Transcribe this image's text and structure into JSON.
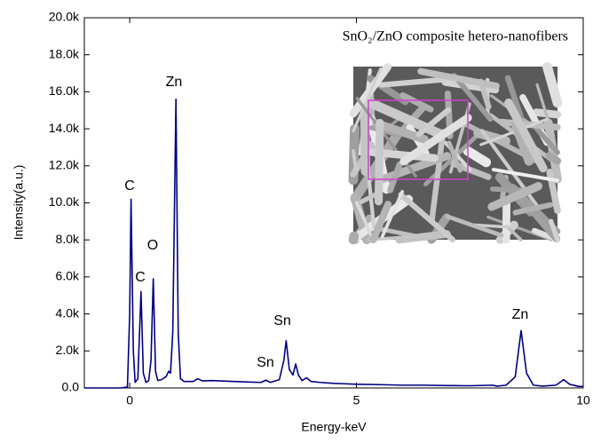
{
  "chart_data": {
    "type": "line",
    "annotation": "SnO₂/ZnO composite hetero-nanofibers",
    "x_label": "Energy-keV",
    "y_label": "Intensity(a.u.)",
    "peak_labels": [
      "C",
      "C",
      "O",
      "Zn",
      "Sn",
      "Sn",
      "Zn"
    ],
    "x": [
      -1,
      -0.2,
      -0.05,
      0,
      0.03,
      0.08,
      0.12,
      0.18,
      0.25,
      0.3,
      0.36,
      0.42,
      0.47,
      0.52,
      0.57,
      0.62,
      0.7,
      0.8,
      0.86,
      0.9,
      0.95,
      1.02,
      1.07,
      1.12,
      1.2,
      1.4,
      1.5,
      1.6,
      1.8,
      2.0,
      2.3,
      2.6,
      2.9,
      3.0,
      3.1,
      3.3,
      3.4,
      3.45,
      3.52,
      3.6,
      3.66,
      3.72,
      3.8,
      3.9,
      4.0,
      4.2,
      4.5,
      5.0,
      5.5,
      6.0,
      6.5,
      7.0,
      7.5,
      8.0,
      8.1,
      8.3,
      8.5,
      8.63,
      8.75,
      8.9,
      9.1,
      9.4,
      9.57,
      9.7,
      9.9,
      10
    ],
    "values": [
      0,
      0,
      50,
      4000,
      10200,
      2000,
      300,
      500,
      5200,
      800,
      300,
      400,
      1500,
      5900,
      900,
      400,
      450,
      600,
      900,
      800,
      3000,
      15600,
      3000,
      500,
      350,
      350,
      500,
      380,
      400,
      380,
      350,
      320,
      300,
      420,
      300,
      450,
      1500,
      2550,
      1000,
      700,
      1300,
      700,
      400,
      550,
      350,
      300,
      250,
      200,
      180,
      150,
      150,
      130,
      120,
      150,
      100,
      150,
      600,
      3100,
      800,
      150,
      100,
      150,
      450,
      200,
      80,
      80
    ],
    "color": "#000080",
    "xlim": [
      -1,
      10
    ],
    "xticks": [
      0,
      5,
      10
    ],
    "ylim": [
      0,
      20000
    ],
    "yticks": [
      {
        "value": 0,
        "label": "0.0"
      },
      {
        "value": 2000,
        "label": "2.0k"
      },
      {
        "value": 4000,
        "label": "4.0k"
      },
      {
        "value": 6000,
        "label": "6.0k"
      },
      {
        "value": 8000,
        "label": "8.0k"
      },
      {
        "value": 10000,
        "label": "10.0k"
      },
      {
        "value": 12000,
        "label": "12.0k"
      },
      {
        "value": 14000,
        "label": "14.0k"
      },
      {
        "value": 16000,
        "label": "16.0k"
      },
      {
        "value": 18000,
        "label": "18.0k"
      },
      {
        "value": 20000,
        "label": "20.0k"
      }
    ],
    "grid": false
  }
}
